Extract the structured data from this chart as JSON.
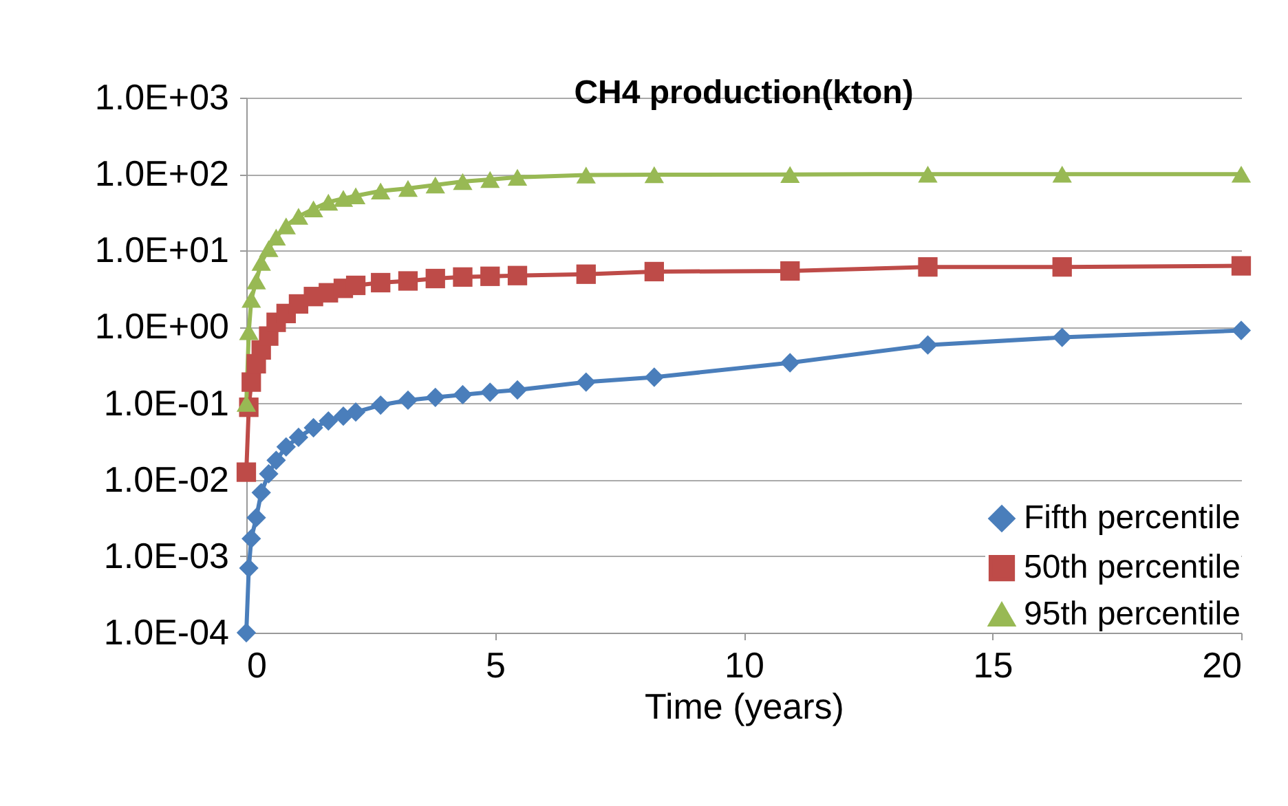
{
  "chart_data": {
    "type": "line",
    "title": "CH4 production(kton)",
    "xlabel": "Time (years)",
    "x": [
      0,
      0.05,
      0.1,
      0.2,
      0.3,
      0.45,
      0.6,
      0.8,
      1.05,
      1.35,
      1.65,
      1.95,
      2.2,
      2.7,
      3.25,
      3.8,
      4.35,
      4.9,
      5.45,
      6.83,
      8.2,
      10.93,
      13.7,
      16.4,
      20
    ],
    "series": [
      {
        "name": "Fifth percentile",
        "color": "#4a7ebb",
        "marker": "diamond",
        "values": [
          0.0001,
          0.0007,
          0.0017,
          0.0032,
          0.0068,
          0.012,
          0.018,
          0.027,
          0.036,
          0.048,
          0.059,
          0.068,
          0.077,
          0.095,
          0.11,
          0.12,
          0.13,
          0.14,
          0.15,
          0.19,
          0.22,
          0.34,
          0.58,
          0.73,
          0.9
        ]
      },
      {
        "name": "50th percentile",
        "color": "#be4b48",
        "marker": "square",
        "values": [
          0.0126,
          0.089,
          0.19,
          0.33,
          0.5,
          0.76,
          1.15,
          1.5,
          2.0,
          2.5,
          2.8,
          3.2,
          3.5,
          3.8,
          4.0,
          4.3,
          4.5,
          4.6,
          4.7,
          4.9,
          5.3,
          5.4,
          6.1,
          6.1,
          6.3
        ]
      },
      {
        "name": "95th percentile",
        "color": "#98b954",
        "marker": "triangle",
        "values": [
          0.1,
          0.87,
          2.3,
          4.0,
          7,
          10.6,
          15,
          21,
          28,
          35,
          43,
          48,
          52,
          60,
          65,
          72,
          80,
          85,
          91,
          97,
          98,
          99,
          100,
          100,
          100
        ]
      }
    ],
    "log": true,
    "xlim": [
      0,
      20
    ],
    "xticks": [
      0,
      5,
      10,
      15,
      20
    ],
    "ylim": [
      0.0001,
      1000
    ],
    "yticks": [
      {
        "value": 0.0001,
        "label": "1.0E-04"
      },
      {
        "value": 0.001,
        "label": "1.0E-03"
      },
      {
        "value": 0.01,
        "label": "1.0E-02"
      },
      {
        "value": 0.1,
        "label": "1.0E-01"
      },
      {
        "value": 1,
        "label": "1.0E+00"
      },
      {
        "value": 10,
        "label": "1.0E+01"
      },
      {
        "value": 100,
        "label": "1.0E+02"
      },
      {
        "value": 1000,
        "label": "1.0E+03"
      }
    ],
    "grid": "y",
    "legend": "bottom right"
  }
}
